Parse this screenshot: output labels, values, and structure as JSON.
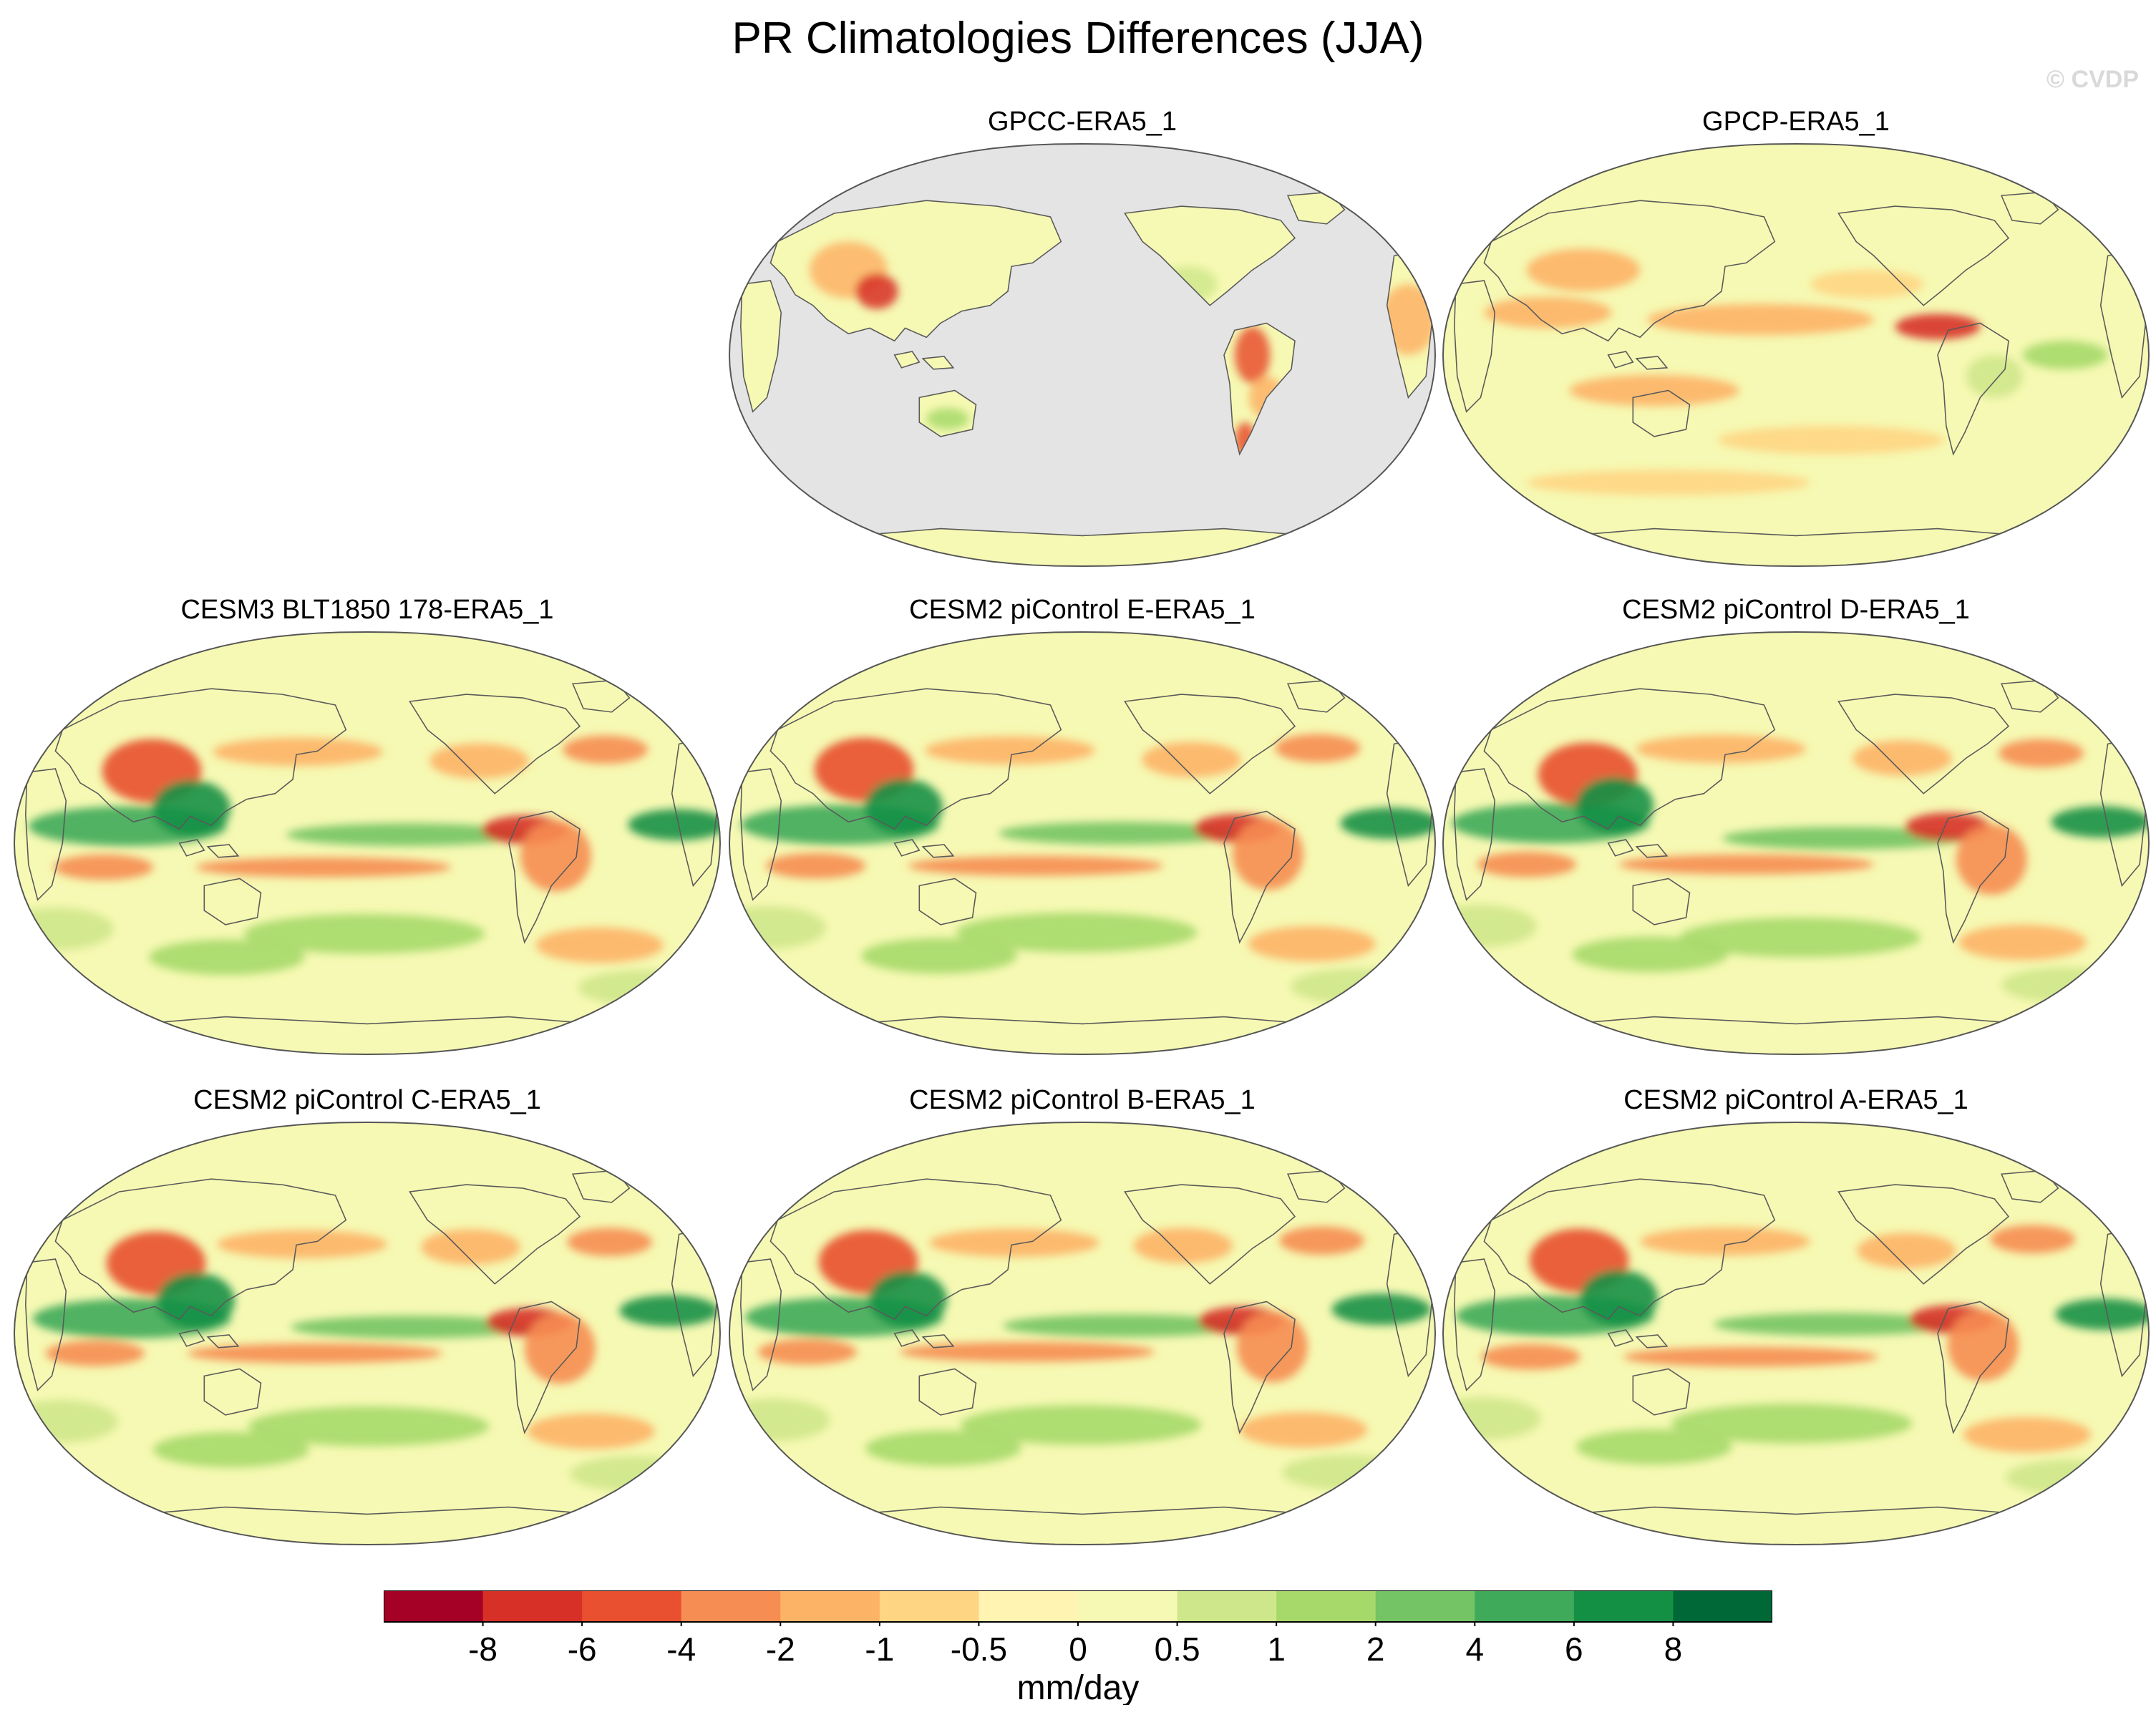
{
  "title": "PR Climatologies Differences (JJA)",
  "watermark": "© CVDP",
  "colors": {
    "ocean_missing": "#e4e4e4",
    "map_outline": "#555555",
    "coast": "#5a5a5a"
  },
  "chart_data": {
    "type": "heatmap",
    "projection": "Robinson (Pacific-centred)",
    "variable": "precipitation climatology difference",
    "season": "JJA",
    "panels": [
      {
        "title": "GPCC-ERA5_1",
        "land_only": true
      },
      {
        "title": "GPCP-ERA5_1",
        "land_only": false
      },
      {
        "title": "CESM3 BLT1850 178-ERA5_1",
        "land_only": false
      },
      {
        "title": "CESM2 piControl E-ERA5_1",
        "land_only": false
      },
      {
        "title": "CESM2 piControl D-ERA5_1",
        "land_only": false
      },
      {
        "title": "CESM2 piControl C-ERA5_1",
        "land_only": false
      },
      {
        "title": "CESM2 piControl B-ERA5_1",
        "land_only": false
      },
      {
        "title": "CESM2 piControl A-ERA5_1",
        "land_only": false
      }
    ],
    "colorbar": {
      "label": "mm/day",
      "tick_labels": [
        "-8",
        "-6",
        "-4",
        "-2",
        "-1",
        "-0.5",
        "0",
        "0.5",
        "1",
        "2",
        "4",
        "6",
        "8"
      ],
      "colors": [
        "#a50026",
        "#d73027",
        "#e8502f",
        "#f68d52",
        "#fdb366",
        "#fed583",
        "#fff4b2",
        "#f6f9b3",
        "#cfe78b",
        "#a6d96a",
        "#74c364",
        "#3faa59",
        "#149045",
        "#006837"
      ]
    }
  }
}
